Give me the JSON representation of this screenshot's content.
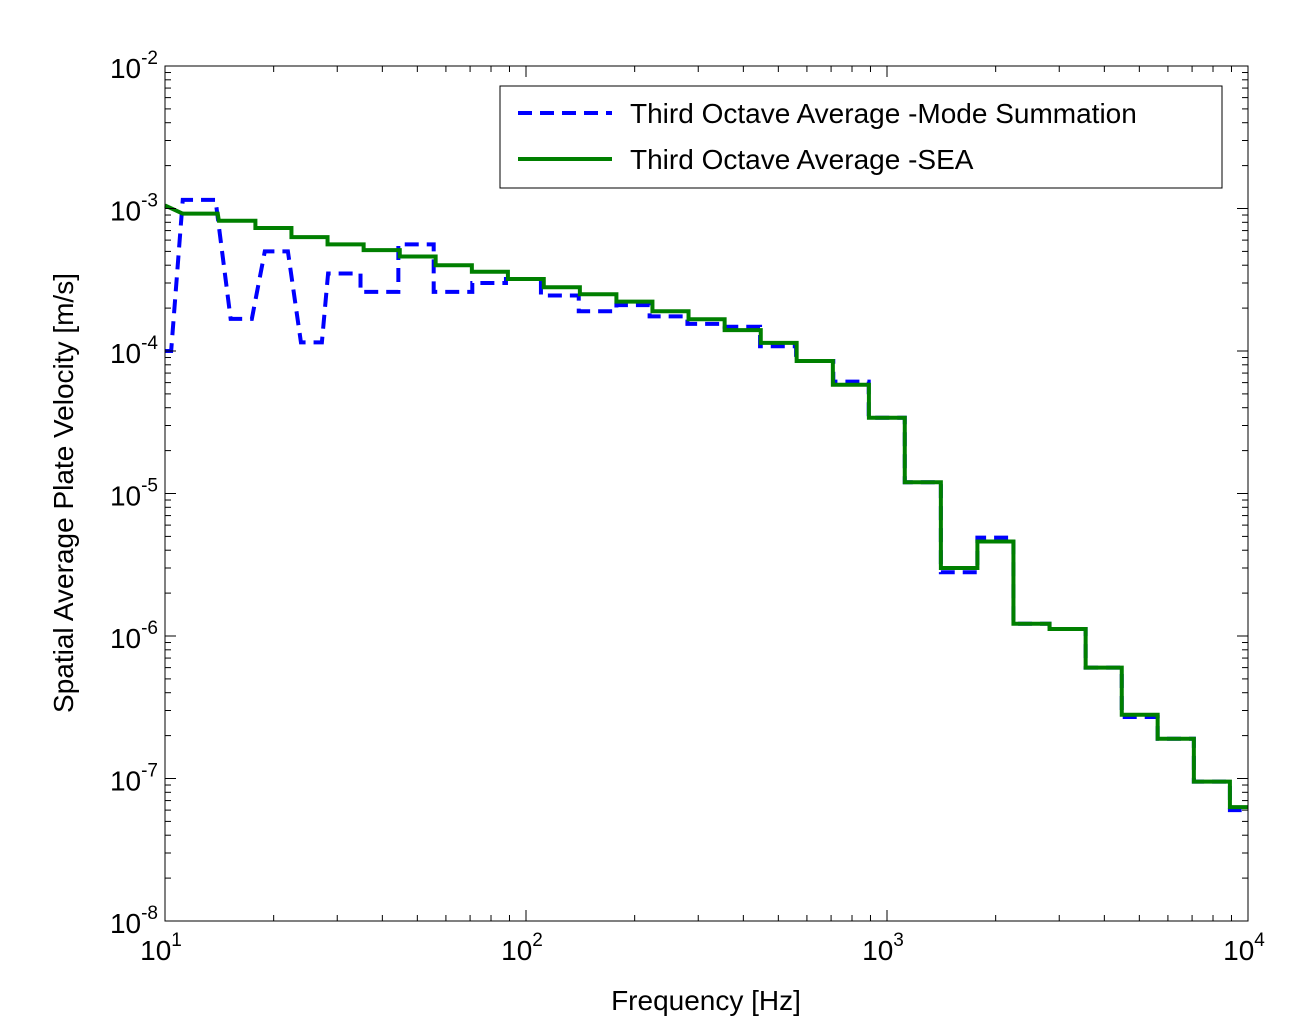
{
  "chart_data": {
    "type": "line",
    "xscale": "log",
    "yscale": "log",
    "xlabel": "Frequency [Hz]",
    "ylabel": "Spatial Average Plate Velocity [m/s]",
    "xlim": [
      10,
      10000
    ],
    "ylim": [
      1e-08,
      0.01
    ],
    "x_ticks": [
      {
        "value": 10,
        "base": "10",
        "exp": "1"
      },
      {
        "value": 100,
        "base": "10",
        "exp": "2"
      },
      {
        "value": 1000,
        "base": "10",
        "exp": "3"
      },
      {
        "value": 10000,
        "base": "10",
        "exp": "4"
      }
    ],
    "y_ticks": [
      {
        "value": 1e-08,
        "base": "10",
        "exp": "-8"
      },
      {
        "value": 1e-07,
        "base": "10",
        "exp": "-7"
      },
      {
        "value": 1e-06,
        "base": "10",
        "exp": "-6"
      },
      {
        "value": 1e-05,
        "base": "10",
        "exp": "-5"
      },
      {
        "value": 0.0001,
        "base": "10",
        "exp": "-4"
      },
      {
        "value": 0.001,
        "base": "10",
        "exp": "-3"
      },
      {
        "value": 0.01,
        "base": "10",
        "exp": "-2"
      }
    ],
    "grid": false,
    "legend_position": "top-right",
    "series": [
      {
        "name": "Third Octave Average -Mode Summation",
        "color": "#0000ff",
        "style": "dashed",
        "points": [
          [
            10,
            0.0001
          ],
          [
            10.4,
            0.0001
          ],
          [
            11.2,
            0.00115
          ],
          [
            13.8,
            0.00115
          ],
          [
            15.2,
            0.000168
          ],
          [
            17.4,
            0.000168
          ],
          [
            18.9,
            0.0005
          ],
          [
            21.9,
            0.0005
          ],
          [
            23.8,
            0.000115
          ],
          [
            27.2,
            0.000115
          ],
          [
            28.3,
            0.00035
          ],
          [
            34.8,
            0.00035
          ],
          [
            34.8,
            0.00026
          ],
          [
            44.3,
            0.00026
          ],
          [
            44.3,
            0.00056
          ],
          [
            55.5,
            0.00056
          ],
          [
            55.5,
            0.00026
          ],
          [
            71,
            0.00026
          ],
          [
            71,
            0.0003
          ],
          [
            88,
            0.0003
          ],
          [
            88,
            0.00032
          ],
          [
            110,
            0.00032
          ],
          [
            110,
            0.000245
          ],
          [
            140,
            0.000245
          ],
          [
            140,
            0.00019
          ],
          [
            178,
            0.00019
          ],
          [
            178,
            0.00021
          ],
          [
            220,
            0.00021
          ],
          [
            220,
            0.000175
          ],
          [
            280,
            0.000175
          ],
          [
            280,
            0.000155
          ],
          [
            355,
            0.000155
          ],
          [
            355,
            0.000148
          ],
          [
            445,
            0.000148
          ],
          [
            445,
            0.000108
          ],
          [
            560,
            0.000108
          ],
          [
            560,
            8.5e-05
          ],
          [
            710,
            8.5e-05
          ],
          [
            710,
            6.1e-05
          ],
          [
            890,
            6.1e-05
          ],
          [
            890,
            3.4e-05
          ],
          [
            1120,
            3.4e-05
          ],
          [
            1120,
            1.2e-05
          ],
          [
            1410,
            1.2e-05
          ],
          [
            1410,
            2.8e-06
          ],
          [
            1780,
            2.8e-06
          ],
          [
            1780,
            4.9e-06
          ],
          [
            2240,
            4.9e-06
          ],
          [
            2240,
            1.22e-06
          ],
          [
            2820,
            1.22e-06
          ],
          [
            2820,
            1.12e-06
          ],
          [
            3550,
            1.12e-06
          ],
          [
            3550,
            6e-07
          ],
          [
            4470,
            6e-07
          ],
          [
            4470,
            2.7e-07
          ],
          [
            5620,
            2.7e-07
          ],
          [
            5620,
            1.9e-07
          ],
          [
            7080,
            1.9e-07
          ],
          [
            7080,
            9.5e-08
          ],
          [
            8910,
            9.5e-08
          ],
          [
            8910,
            6e-08
          ],
          [
            10000,
            6e-08
          ]
        ]
      },
      {
        "name": "Third Octave Average -SEA",
        "color": "#007f00",
        "style": "solid",
        "points": [
          [
            10,
            0.00105
          ],
          [
            11.2,
            0.00092
          ],
          [
            14,
            0.00092
          ],
          [
            14.1,
            0.00082
          ],
          [
            17.8,
            0.00082
          ],
          [
            17.8,
            0.00073
          ],
          [
            22.4,
            0.00073
          ],
          [
            22.4,
            0.00063
          ],
          [
            28.2,
            0.00063
          ],
          [
            28.2,
            0.00056
          ],
          [
            35.5,
            0.00056
          ],
          [
            35.5,
            0.00051
          ],
          [
            44.7,
            0.00051
          ],
          [
            44.7,
            0.00046
          ],
          [
            56.2,
            0.00046
          ],
          [
            56.2,
            0.0004
          ],
          [
            70.8,
            0.0004
          ],
          [
            70.8,
            0.00036
          ],
          [
            89.1,
            0.00036
          ],
          [
            89.1,
            0.00032
          ],
          [
            112,
            0.00032
          ],
          [
            112,
            0.00028
          ],
          [
            141,
            0.00028
          ],
          [
            141,
            0.00025
          ],
          [
            178,
            0.00025
          ],
          [
            178,
            0.000222
          ],
          [
            224,
            0.000222
          ],
          [
            224,
            0.00019
          ],
          [
            282,
            0.00019
          ],
          [
            282,
            0.000167
          ],
          [
            355,
            0.000167
          ],
          [
            355,
            0.00014
          ],
          [
            447,
            0.00014
          ],
          [
            447,
            0.000114
          ],
          [
            562,
            0.000114
          ],
          [
            562,
            8.5e-05
          ],
          [
            708,
            8.5e-05
          ],
          [
            708,
            5.8e-05
          ],
          [
            891,
            5.8e-05
          ],
          [
            891,
            3.4e-05
          ],
          [
            1120,
            3.4e-05
          ],
          [
            1120,
            1.2e-05
          ],
          [
            1410,
            1.2e-05
          ],
          [
            1410,
            3e-06
          ],
          [
            1780,
            3e-06
          ],
          [
            1780,
            4.6e-06
          ],
          [
            2240,
            4.6e-06
          ],
          [
            2240,
            1.22e-06
          ],
          [
            2820,
            1.22e-06
          ],
          [
            2820,
            1.12e-06
          ],
          [
            3550,
            1.12e-06
          ],
          [
            3550,
            6e-07
          ],
          [
            4470,
            6e-07
          ],
          [
            4470,
            2.8e-07
          ],
          [
            5620,
            2.8e-07
          ],
          [
            5620,
            1.9e-07
          ],
          [
            7080,
            1.9e-07
          ],
          [
            7080,
            9.5e-08
          ],
          [
            8910,
            9.5e-08
          ],
          [
            8910,
            6.3e-08
          ],
          [
            10000,
            6.3e-08
          ]
        ]
      }
    ]
  }
}
